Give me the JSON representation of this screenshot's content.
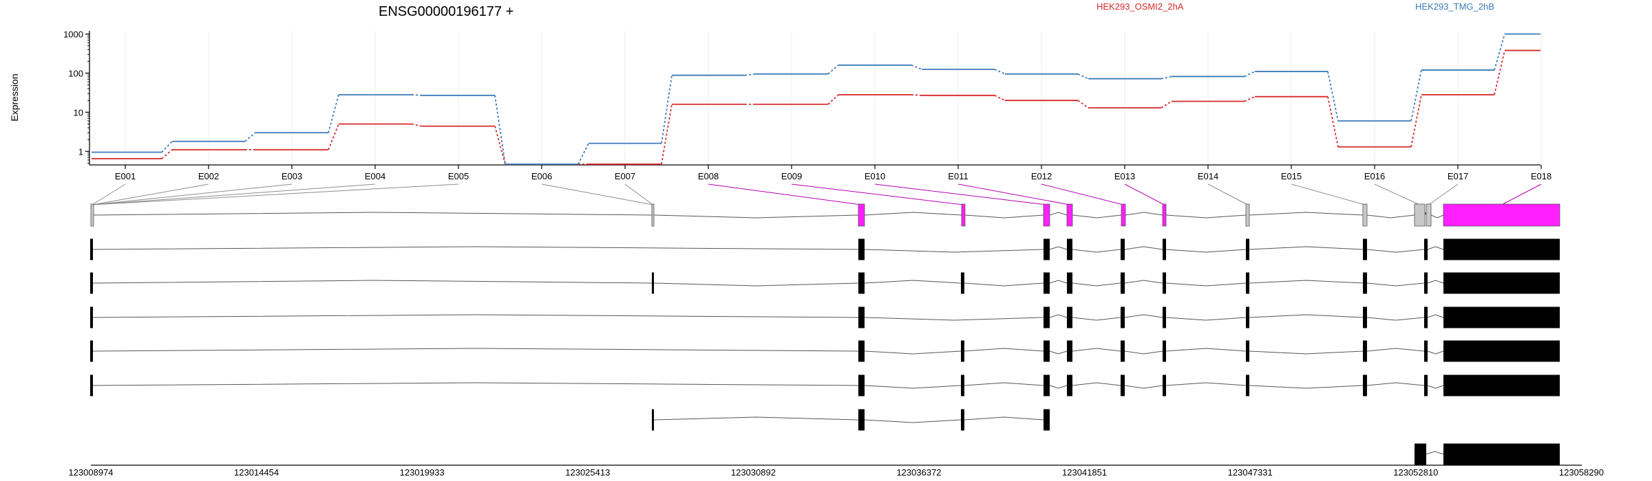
{
  "chart_data": {
    "type": "line",
    "title": "ENSG00000196177 +",
    "ylabel": "Expression",
    "xlabel": "",
    "y_scale": "log",
    "ylim": [
      0.45,
      1200
    ],
    "y_ticks": [
      1,
      10,
      100,
      1000
    ],
    "y_tick_labels": [
      "1",
      "10",
      "100",
      "1000"
    ],
    "grid": "vertical",
    "legend_position": "top",
    "categories": [
      "E001",
      "E002",
      "E003",
      "E004",
      "E005",
      "E006",
      "E007",
      "E008",
      "E009",
      "E010",
      "E011",
      "E012",
      "E013",
      "E014",
      "E015",
      "E016",
      "E017",
      "E018"
    ],
    "series": [
      {
        "name": "HEK293_OSMI2_2hA",
        "color": "#d62728",
        "values": [
          0.65,
          1.1,
          1.1,
          5.0,
          4.4,
          0.47,
          0.47,
          16,
          16,
          28,
          27,
          20,
          13,
          19,
          25,
          1.3,
          28,
          380
        ]
      },
      {
        "name": "HEK293_TMG_2hB",
        "color": "#3b7ab8",
        "values": [
          0.95,
          1.8,
          3.0,
          28,
          27,
          0.47,
          1.6,
          88,
          95,
          160,
          125,
          95,
          72,
          82,
          110,
          6,
          120,
          1000
        ]
      }
    ],
    "exon_highlight_color": "#ff1fff",
    "exon_neutral_color": "#c8c8c8",
    "genomic_axis": {
      "tick_labels": [
        "123008974",
        "123014454",
        "123019933",
        "123025413",
        "123030892",
        "123036372",
        "123041851",
        "123047331",
        "123052810",
        "123058290"
      ]
    }
  }
}
